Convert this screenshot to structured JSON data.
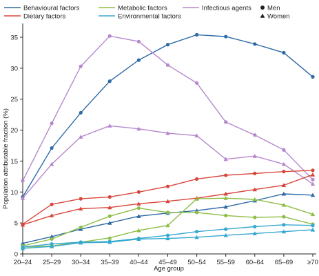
{
  "chart_data": {
    "type": "line",
    "xlabel": "Age group",
    "ylabel": "Population attributable fraction (%)",
    "ylim": [
      0,
      37
    ],
    "yticks": [
      0,
      5,
      10,
      15,
      20,
      25,
      30,
      35
    ],
    "categories": [
      "20–24",
      "25–29",
      "30–34",
      "35–39",
      "40–44",
      "45–49",
      "50–54",
      "55–59",
      "60–64",
      "65–69",
      "≥70"
    ],
    "grid": false,
    "legend": {
      "placement": "top",
      "entries": [
        {
          "label": "Behavioural factors",
          "color": "#2e6aa6"
        },
        {
          "label": "Metabolic factors",
          "color": "#8dbd45"
        },
        {
          "label": "Infectious agents",
          "color": "#b587cc"
        },
        {
          "label": "Men",
          "marker": "circle"
        },
        {
          "label": "Dietary factors",
          "color": "#d8463b"
        },
        {
          "label": "Environmental factors",
          "color": "#36a8d0"
        },
        {
          "label": "Women",
          "marker": "triangle"
        }
      ]
    },
    "series": [
      {
        "name": "Behavioural factors",
        "sex": "Men",
        "color": "#2e6aa6",
        "values": [
          9.2,
          17.1,
          22.8,
          27.9,
          31.3,
          33.8,
          35.4,
          35.1,
          33.9,
          32.5,
          28.6
        ]
      },
      {
        "name": "Behavioural factors",
        "sex": "Women",
        "color": "#2e6aa6",
        "values": [
          1.7,
          2.8,
          4.0,
          5.0,
          6.1,
          6.6,
          7.0,
          7.6,
          8.6,
          9.7,
          9.5
        ]
      },
      {
        "name": "Infectious agents",
        "sex": "Men",
        "color": "#b587cc",
        "values": [
          11.8,
          21.1,
          30.3,
          35.2,
          34.3,
          30.5,
          27.6,
          21.3,
          19.2,
          16.8,
          12.0
        ]
      },
      {
        "name": "Infectious agents",
        "sex": "Women",
        "color": "#b587cc",
        "values": [
          9.0,
          14.5,
          18.9,
          20.7,
          20.2,
          19.5,
          19.1,
          15.3,
          15.8,
          14.5,
          11.3
        ]
      },
      {
        "name": "Dietary factors",
        "sex": "Men",
        "color": "#d8463b",
        "values": [
          4.8,
          8.0,
          8.9,
          9.2,
          10.0,
          10.9,
          12.1,
          12.7,
          13.0,
          13.3,
          13.5
        ]
      },
      {
        "name": "Dietary factors",
        "sex": "Women",
        "color": "#d8463b",
        "values": [
          4.7,
          6.2,
          7.3,
          7.5,
          8.1,
          8.5,
          9.0,
          9.7,
          10.4,
          11.1,
          12.8
        ]
      },
      {
        "name": "Metabolic factors",
        "sex": "Men",
        "color": "#8dbd45",
        "values": [
          1.3,
          2.4,
          4.3,
          6.1,
          7.4,
          6.7,
          6.7,
          6.2,
          5.9,
          6.0,
          4.8
        ]
      },
      {
        "name": "Metabolic factors",
        "sex": "Women",
        "color": "#8dbd45",
        "values": [
          1.1,
          1.3,
          1.9,
          2.6,
          3.8,
          4.6,
          8.9,
          9.0,
          8.8,
          7.9,
          6.4
        ]
      },
      {
        "name": "Environmental factors",
        "sex": "Men",
        "color": "#36a8d0",
        "values": [
          1.1,
          1.6,
          1.9,
          2.0,
          2.5,
          3.0,
          3.6,
          4.0,
          4.4,
          4.7,
          4.6
        ]
      },
      {
        "name": "Environmental factors",
        "sex": "Women",
        "color": "#36a8d0",
        "values": [
          0.9,
          1.2,
          1.8,
          1.9,
          2.4,
          2.5,
          2.7,
          3.0,
          3.3,
          3.6,
          3.9
        ]
      }
    ]
  }
}
